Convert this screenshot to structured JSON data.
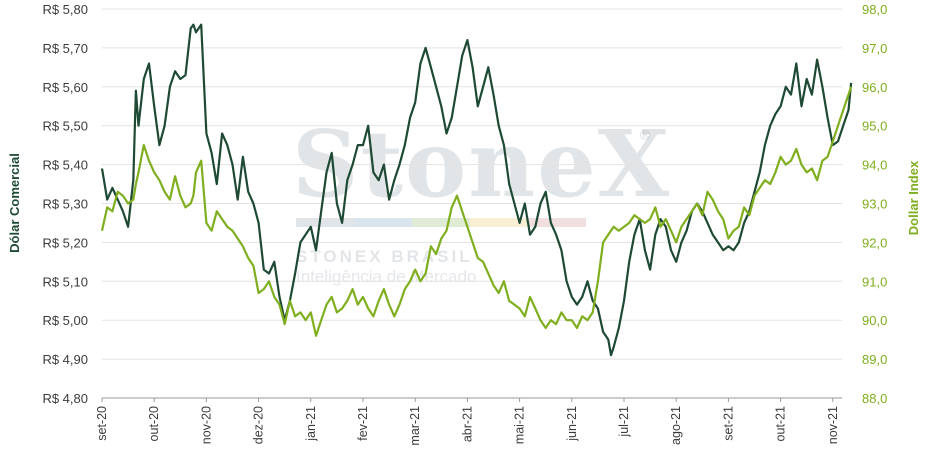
{
  "chart_data": {
    "type": "line",
    "title": "",
    "x_ticks": [
      "set-20",
      "out-20",
      "nov-20",
      "dez-20",
      "jan-21",
      "fev-21",
      "mar-21",
      "abr-21",
      "mai-21",
      "jun-21",
      "jul-21",
      "ago-21",
      "set-21",
      "out-21",
      "nov-21"
    ],
    "y_left": {
      "label": "Dólar Comercial",
      "range": [
        4.8,
        5.8
      ],
      "ticks": [
        "R$ 4,80",
        "R$ 4,90",
        "R$ 5,00",
        "R$ 5,10",
        "R$ 5,20",
        "R$ 5,30",
        "R$ 5,40",
        "R$ 5,50",
        "R$ 5,60",
        "R$ 5,70",
        "R$ 5,80"
      ]
    },
    "y_right": {
      "label": "Dollar Index",
      "range": [
        88.0,
        98.0
      ],
      "ticks": [
        "88,0",
        "89,0",
        "90,0",
        "91,0",
        "92,0",
        "93,0",
        "94,0",
        "95,0",
        "96,0",
        "97,0",
        "98,0"
      ]
    },
    "grid": "horizontal",
    "series": [
      {
        "name": "Dólar Comercial",
        "axis": "left",
        "color": "#1e4a35",
        "points": [
          [
            0.0,
            5.39
          ],
          [
            0.1,
            5.31
          ],
          [
            0.2,
            5.34
          ],
          [
            0.3,
            5.31
          ],
          [
            0.4,
            5.28
          ],
          [
            0.5,
            5.24
          ],
          [
            0.6,
            5.36
          ],
          [
            0.65,
            5.59
          ],
          [
            0.7,
            5.5
          ],
          [
            0.8,
            5.62
          ],
          [
            0.9,
            5.66
          ],
          [
            1.0,
            5.55
          ],
          [
            1.1,
            5.45
          ],
          [
            1.2,
            5.5
          ],
          [
            1.3,
            5.6
          ],
          [
            1.4,
            5.64
          ],
          [
            1.5,
            5.62
          ],
          [
            1.6,
            5.63
          ],
          [
            1.7,
            5.75
          ],
          [
            1.75,
            5.76
          ],
          [
            1.8,
            5.74
          ],
          [
            1.9,
            5.76
          ],
          [
            2.0,
            5.48
          ],
          [
            2.1,
            5.43
          ],
          [
            2.2,
            5.35
          ],
          [
            2.3,
            5.48
          ],
          [
            2.4,
            5.45
          ],
          [
            2.5,
            5.4
          ],
          [
            2.6,
            5.31
          ],
          [
            2.7,
            5.42
          ],
          [
            2.8,
            5.33
          ],
          [
            2.9,
            5.3
          ],
          [
            3.0,
            5.25
          ],
          [
            3.1,
            5.13
          ],
          [
            3.2,
            5.12
          ],
          [
            3.3,
            5.15
          ],
          [
            3.4,
            5.06
          ],
          [
            3.5,
            5.0
          ],
          [
            3.6,
            5.05
          ],
          [
            3.7,
            5.12
          ],
          [
            3.8,
            5.2
          ],
          [
            3.9,
            5.22
          ],
          [
            4.0,
            5.24
          ],
          [
            4.1,
            5.18
          ],
          [
            4.2,
            5.28
          ],
          [
            4.3,
            5.38
          ],
          [
            4.4,
            5.43
          ],
          [
            4.5,
            5.3
          ],
          [
            4.6,
            5.25
          ],
          [
            4.7,
            5.36
          ],
          [
            4.8,
            5.4
          ],
          [
            4.9,
            5.45
          ],
          [
            5.0,
            5.45
          ],
          [
            5.1,
            5.5
          ],
          [
            5.2,
            5.38
          ],
          [
            5.3,
            5.36
          ],
          [
            5.4,
            5.4
          ],
          [
            5.5,
            5.31
          ],
          [
            5.6,
            5.36
          ],
          [
            5.7,
            5.4
          ],
          [
            5.8,
            5.45
          ],
          [
            5.9,
            5.52
          ],
          [
            6.0,
            5.56
          ],
          [
            6.1,
            5.66
          ],
          [
            6.2,
            5.7
          ],
          [
            6.3,
            5.65
          ],
          [
            6.4,
            5.6
          ],
          [
            6.5,
            5.55
          ],
          [
            6.6,
            5.48
          ],
          [
            6.7,
            5.52
          ],
          [
            6.8,
            5.6
          ],
          [
            6.9,
            5.68
          ],
          [
            7.0,
            5.72
          ],
          [
            7.1,
            5.65
          ],
          [
            7.2,
            5.55
          ],
          [
            7.3,
            5.6
          ],
          [
            7.4,
            5.65
          ],
          [
            7.5,
            5.58
          ],
          [
            7.6,
            5.5
          ],
          [
            7.7,
            5.45
          ],
          [
            7.8,
            5.35
          ],
          [
            7.9,
            5.3
          ],
          [
            8.0,
            5.25
          ],
          [
            8.1,
            5.3
          ],
          [
            8.2,
            5.22
          ],
          [
            8.3,
            5.24
          ],
          [
            8.4,
            5.3
          ],
          [
            8.5,
            5.33
          ],
          [
            8.6,
            5.25
          ],
          [
            8.7,
            5.22
          ],
          [
            8.8,
            5.18
          ],
          [
            8.9,
            5.1
          ],
          [
            9.0,
            5.06
          ],
          [
            9.1,
            5.04
          ],
          [
            9.2,
            5.06
          ],
          [
            9.3,
            5.1
          ],
          [
            9.4,
            5.05
          ],
          [
            9.5,
            5.03
          ],
          [
            9.6,
            4.97
          ],
          [
            9.7,
            4.95
          ],
          [
            9.75,
            4.91
          ],
          [
            9.8,
            4.93
          ],
          [
            9.9,
            4.98
          ],
          [
            10.0,
            5.05
          ],
          [
            10.1,
            5.15
          ],
          [
            10.2,
            5.22
          ],
          [
            10.3,
            5.26
          ],
          [
            10.4,
            5.18
          ],
          [
            10.5,
            5.13
          ],
          [
            10.6,
            5.22
          ],
          [
            10.7,
            5.26
          ],
          [
            10.8,
            5.24
          ],
          [
            10.9,
            5.18
          ],
          [
            11.0,
            5.15
          ],
          [
            11.1,
            5.2
          ],
          [
            11.2,
            5.23
          ],
          [
            11.3,
            5.28
          ],
          [
            11.4,
            5.3
          ],
          [
            11.5,
            5.28
          ],
          [
            11.6,
            5.25
          ],
          [
            11.7,
            5.22
          ],
          [
            11.8,
            5.2
          ],
          [
            11.9,
            5.18
          ],
          [
            12.0,
            5.19
          ],
          [
            12.1,
            5.18
          ],
          [
            12.2,
            5.2
          ],
          [
            12.3,
            5.25
          ],
          [
            12.4,
            5.28
          ],
          [
            12.5,
            5.33
          ],
          [
            12.6,
            5.38
          ],
          [
            12.7,
            5.45
          ],
          [
            12.8,
            5.5
          ],
          [
            12.9,
            5.53
          ],
          [
            13.0,
            5.55
          ],
          [
            13.1,
            5.6
          ],
          [
            13.2,
            5.58
          ],
          [
            13.3,
            5.66
          ],
          [
            13.4,
            5.55
          ],
          [
            13.5,
            5.62
          ],
          [
            13.6,
            5.58
          ],
          [
            13.7,
            5.67
          ],
          [
            13.8,
            5.6
          ],
          [
            13.9,
            5.52
          ],
          [
            14.0,
            5.45
          ],
          [
            14.1,
            5.46
          ],
          [
            14.2,
            5.5
          ],
          [
            14.3,
            5.54
          ],
          [
            14.35,
            5.61
          ]
        ]
      },
      {
        "name": "Dollar Index",
        "axis": "right",
        "color": "#7fae1e",
        "points": [
          [
            0.0,
            92.3
          ],
          [
            0.1,
            92.9
          ],
          [
            0.2,
            92.8
          ],
          [
            0.3,
            93.3
          ],
          [
            0.4,
            93.2
          ],
          [
            0.5,
            93.0
          ],
          [
            0.6,
            93.1
          ],
          [
            0.65,
            93.5
          ],
          [
            0.7,
            93.8
          ],
          [
            0.8,
            94.5
          ],
          [
            0.9,
            94.1
          ],
          [
            1.0,
            93.8
          ],
          [
            1.1,
            93.6
          ],
          [
            1.2,
            93.3
          ],
          [
            1.3,
            93.1
          ],
          [
            1.4,
            93.7
          ],
          [
            1.5,
            93.2
          ],
          [
            1.6,
            92.9
          ],
          [
            1.7,
            93.0
          ],
          [
            1.75,
            93.2
          ],
          [
            1.8,
            93.8
          ],
          [
            1.9,
            94.1
          ],
          [
            2.0,
            92.5
          ],
          [
            2.1,
            92.3
          ],
          [
            2.2,
            92.8
          ],
          [
            2.3,
            92.6
          ],
          [
            2.4,
            92.4
          ],
          [
            2.5,
            92.3
          ],
          [
            2.6,
            92.1
          ],
          [
            2.7,
            91.9
          ],
          [
            2.8,
            91.6
          ],
          [
            2.9,
            91.4
          ],
          [
            3.0,
            90.7
          ],
          [
            3.1,
            90.8
          ],
          [
            3.2,
            91.0
          ],
          [
            3.3,
            90.6
          ],
          [
            3.4,
            90.4
          ],
          [
            3.5,
            89.9
          ],
          [
            3.6,
            90.5
          ],
          [
            3.7,
            90.1
          ],
          [
            3.8,
            90.2
          ],
          [
            3.9,
            90.0
          ],
          [
            4.0,
            90.2
          ],
          [
            4.1,
            89.6
          ],
          [
            4.2,
            90.0
          ],
          [
            4.3,
            90.4
          ],
          [
            4.4,
            90.6
          ],
          [
            4.5,
            90.2
          ],
          [
            4.6,
            90.3
          ],
          [
            4.7,
            90.5
          ],
          [
            4.8,
            90.8
          ],
          [
            4.9,
            90.4
          ],
          [
            5.0,
            90.6
          ],
          [
            5.1,
            90.3
          ],
          [
            5.2,
            90.1
          ],
          [
            5.3,
            90.5
          ],
          [
            5.4,
            90.8
          ],
          [
            5.5,
            90.4
          ],
          [
            5.6,
            90.1
          ],
          [
            5.7,
            90.4
          ],
          [
            5.8,
            90.8
          ],
          [
            5.9,
            91.0
          ],
          [
            6.0,
            91.3
          ],
          [
            6.1,
            91.0
          ],
          [
            6.2,
            91.2
          ],
          [
            6.3,
            91.9
          ],
          [
            6.4,
            91.7
          ],
          [
            6.5,
            92.1
          ],
          [
            6.6,
            92.3
          ],
          [
            6.7,
            92.9
          ],
          [
            6.8,
            93.2
          ],
          [
            6.9,
            92.8
          ],
          [
            7.0,
            92.4
          ],
          [
            7.1,
            92.0
          ],
          [
            7.2,
            91.6
          ],
          [
            7.3,
            91.5
          ],
          [
            7.4,
            91.2
          ],
          [
            7.5,
            90.9
          ],
          [
            7.6,
            90.7
          ],
          [
            7.7,
            91.0
          ],
          [
            7.8,
            90.5
          ],
          [
            7.9,
            90.4
          ],
          [
            8.0,
            90.3
          ],
          [
            8.1,
            90.1
          ],
          [
            8.2,
            90.6
          ],
          [
            8.3,
            90.3
          ],
          [
            8.4,
            90.0
          ],
          [
            8.5,
            89.8
          ],
          [
            8.6,
            90.0
          ],
          [
            8.7,
            89.9
          ],
          [
            8.8,
            90.2
          ],
          [
            8.9,
            90.0
          ],
          [
            9.0,
            90.0
          ],
          [
            9.1,
            89.8
          ],
          [
            9.2,
            90.1
          ],
          [
            9.3,
            90.0
          ],
          [
            9.4,
            90.2
          ],
          [
            9.5,
            91.0
          ],
          [
            9.6,
            92.0
          ],
          [
            9.7,
            92.2
          ],
          [
            9.8,
            92.4
          ],
          [
            9.9,
            92.3
          ],
          [
            10.0,
            92.4
          ],
          [
            10.1,
            92.5
          ],
          [
            10.2,
            92.7
          ],
          [
            10.3,
            92.6
          ],
          [
            10.4,
            92.5
          ],
          [
            10.5,
            92.6
          ],
          [
            10.6,
            92.9
          ],
          [
            10.7,
            92.4
          ],
          [
            10.8,
            92.6
          ],
          [
            10.9,
            92.3
          ],
          [
            11.0,
            92.0
          ],
          [
            11.1,
            92.4
          ],
          [
            11.2,
            92.6
          ],
          [
            11.3,
            92.8
          ],
          [
            11.4,
            93.0
          ],
          [
            11.5,
            92.7
          ],
          [
            11.6,
            93.3
          ],
          [
            11.7,
            93.1
          ],
          [
            11.8,
            92.8
          ],
          [
            11.9,
            92.6
          ],
          [
            12.0,
            92.1
          ],
          [
            12.1,
            92.3
          ],
          [
            12.2,
            92.4
          ],
          [
            12.3,
            92.9
          ],
          [
            12.4,
            92.7
          ],
          [
            12.5,
            93.2
          ],
          [
            12.6,
            93.4
          ],
          [
            12.7,
            93.6
          ],
          [
            12.8,
            93.5
          ],
          [
            12.9,
            93.8
          ],
          [
            13.0,
            94.2
          ],
          [
            13.1,
            94.0
          ],
          [
            13.2,
            94.1
          ],
          [
            13.3,
            94.4
          ],
          [
            13.4,
            94.0
          ],
          [
            13.5,
            93.8
          ],
          [
            13.6,
            93.9
          ],
          [
            13.7,
            93.6
          ],
          [
            13.8,
            94.1
          ],
          [
            13.9,
            94.2
          ],
          [
            14.0,
            94.6
          ],
          [
            14.1,
            95.0
          ],
          [
            14.2,
            95.4
          ],
          [
            14.3,
            95.8
          ],
          [
            14.35,
            96.0
          ]
        ]
      }
    ]
  },
  "watermark": {
    "main": "StoneX",
    "sub1": "STONEX BRASIL",
    "sub2": "Inteligência de Mercado",
    "reg": "®",
    "stripe_colors": [
      "#c9cfd6",
      "#b9cde0",
      "#c4dbb0",
      "#f3e2b2",
      "#e6c5c5"
    ]
  }
}
